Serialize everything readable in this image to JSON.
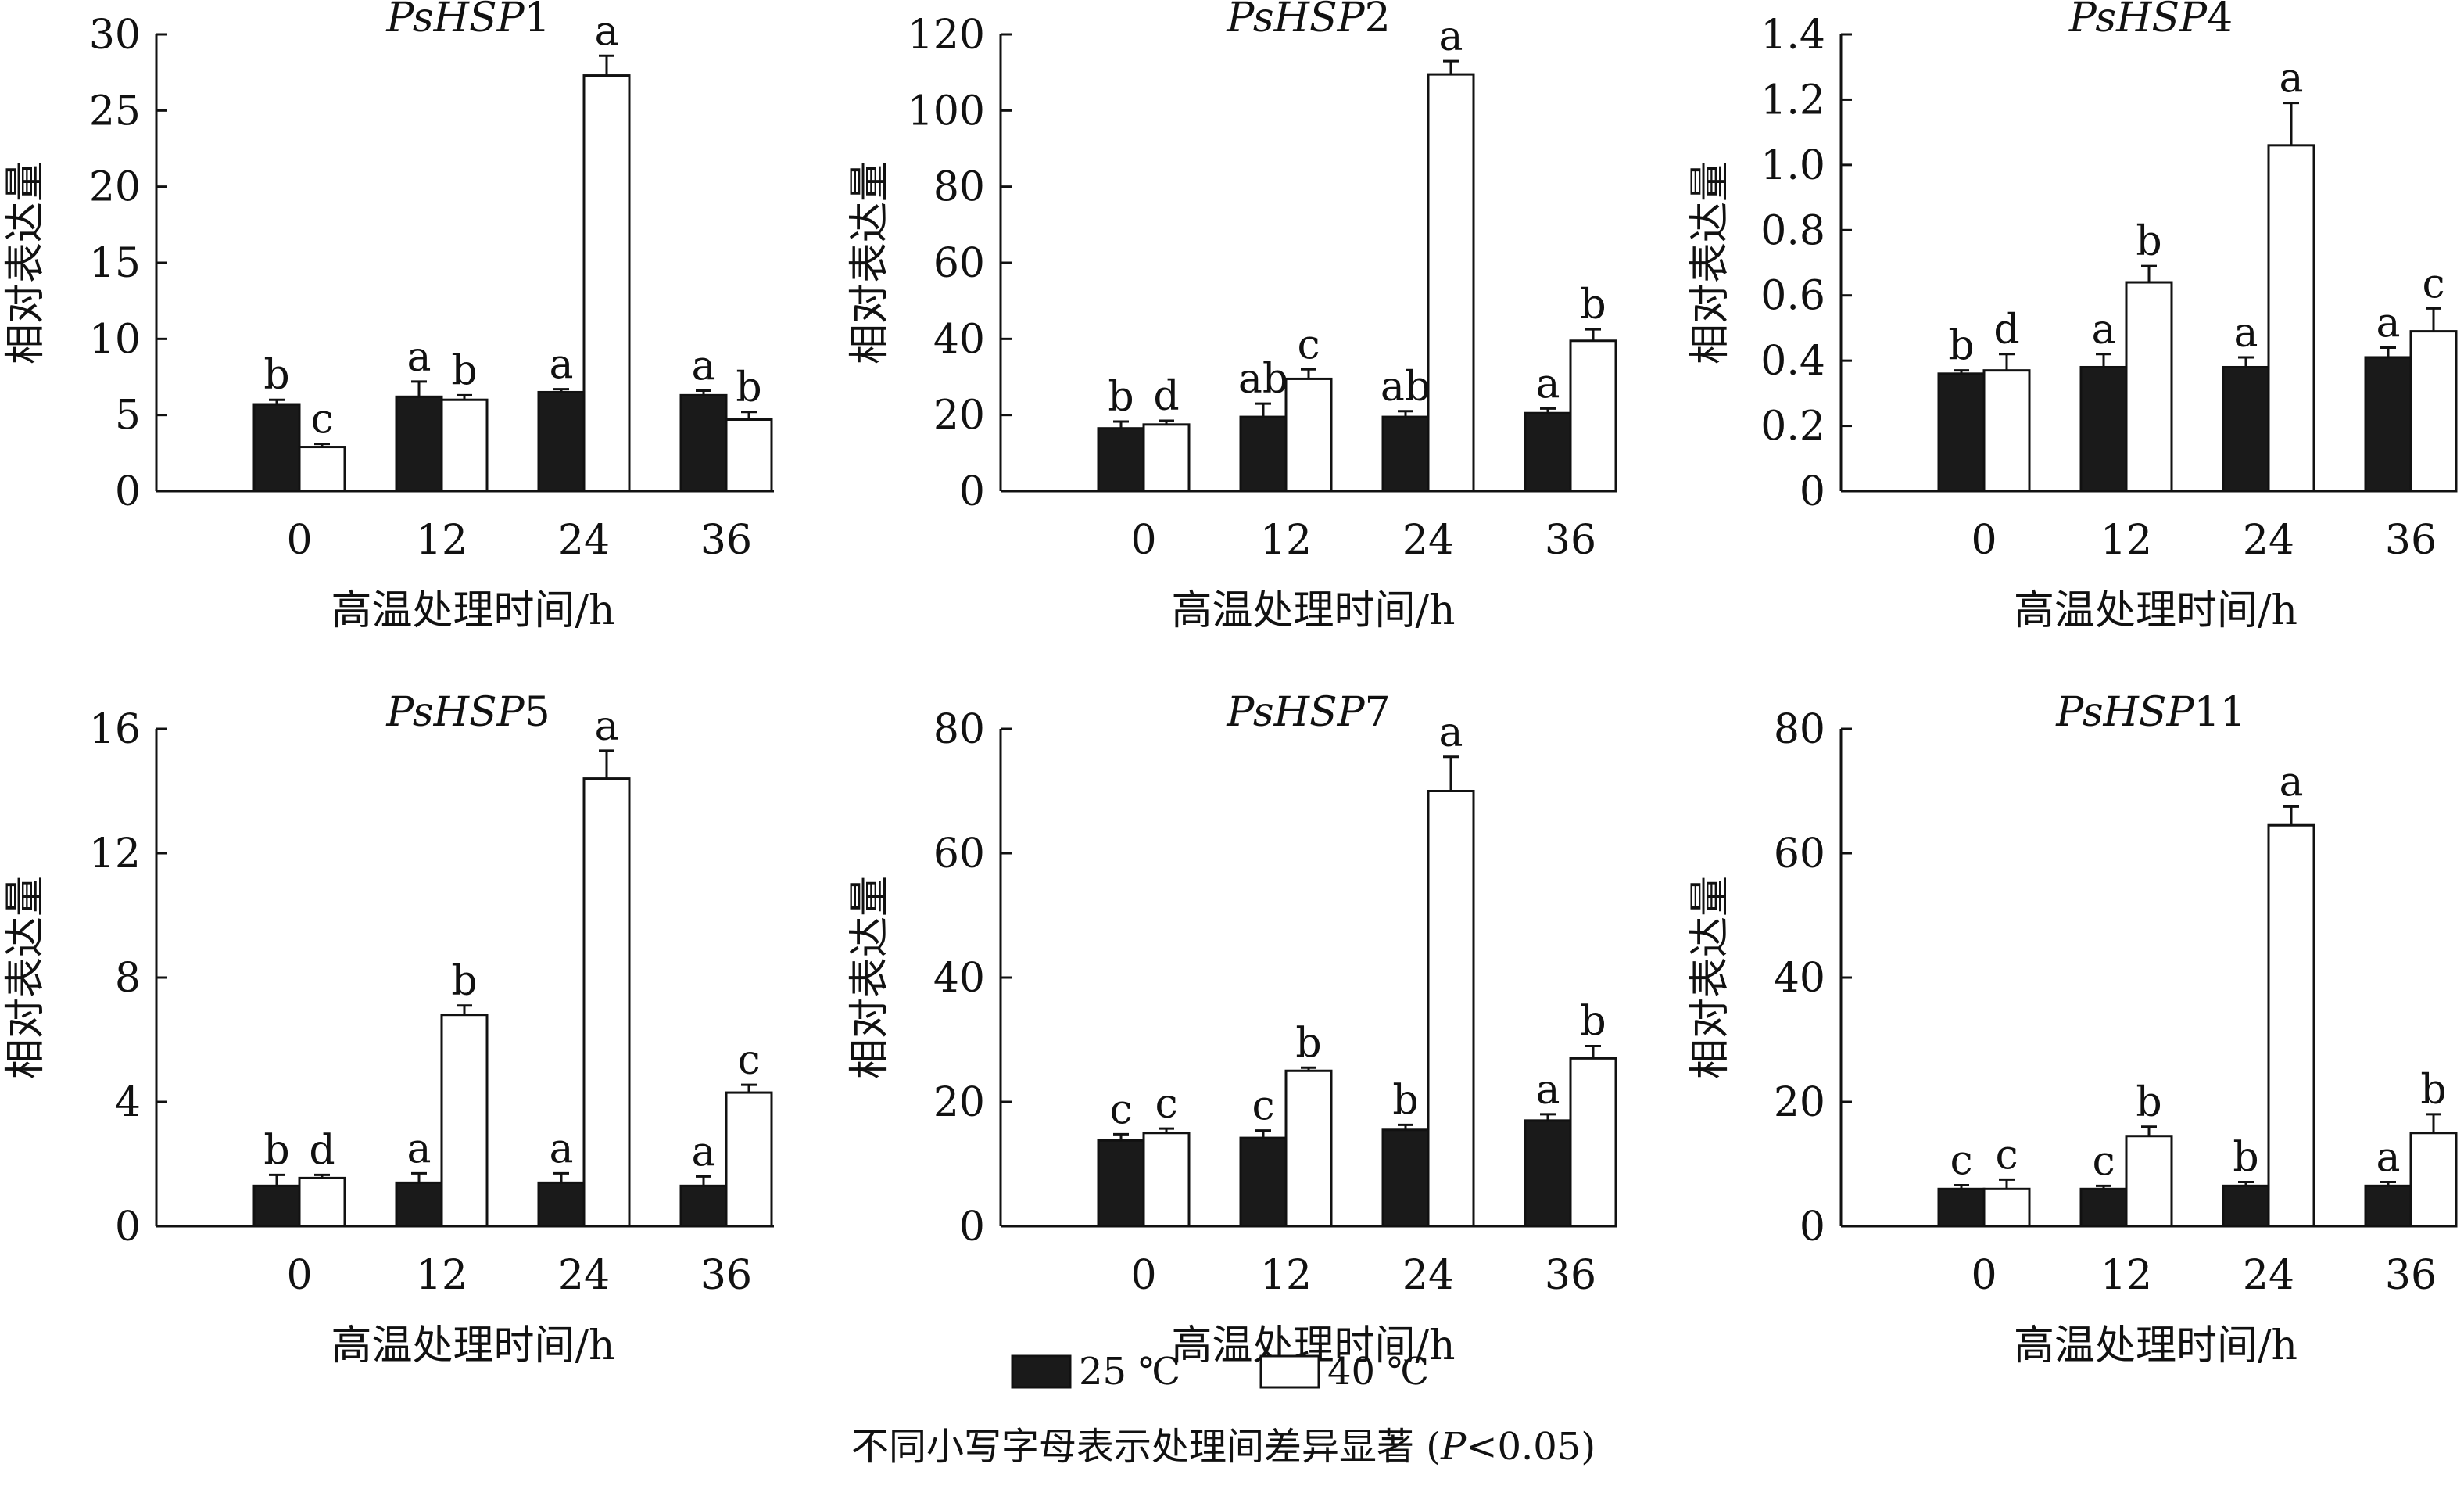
{
  "colors": {
    "series_25": "#1a1a1a",
    "series_40": "#ffffff",
    "stroke": "#111111"
  },
  "legend": {
    "items": [
      "25 ℃",
      "40 ℃"
    ]
  },
  "footnote": {
    "prefix": "不同小写字母表示处理间差异显著 (",
    "italic": "P",
    "suffix": "<0.05)"
  },
  "chart_data": [
    {
      "type": "bar",
      "title_italic": "PsHSP",
      "title_num": "1",
      "xlabel": "高温处理时间/h",
      "ylabel": "相对表达量",
      "categories": [
        "0",
        "12",
        "24",
        "36"
      ],
      "ylim": [
        0,
        30
      ],
      "yticks": [
        0,
        5,
        10,
        15,
        20,
        25,
        30
      ],
      "series": [
        {
          "name": "25 ℃",
          "values": [
            5.7,
            6.2,
            6.5,
            6.3
          ],
          "errors": [
            0.3,
            1.0,
            0.2,
            0.3
          ],
          "letters": [
            "b",
            "a",
            "a",
            "a"
          ]
        },
        {
          "name": "40 ℃",
          "values": [
            2.9,
            6.0,
            27.3,
            4.7
          ],
          "errors": [
            0.2,
            0.3,
            1.3,
            0.5
          ],
          "letters": [
            "c",
            "b",
            "a",
            "b"
          ]
        }
      ]
    },
    {
      "type": "bar",
      "title_italic": "PsHSP",
      "title_num": "2",
      "xlabel": "高温处理时间/h",
      "ylabel": "相对表达量",
      "categories": [
        "0",
        "12",
        "24",
        "36"
      ],
      "ylim": [
        0,
        120
      ],
      "yticks": [
        0,
        20,
        40,
        60,
        80,
        100,
        120
      ],
      "series": [
        {
          "name": "25 ℃",
          "values": [
            16.5,
            19.5,
            19.5,
            20.5
          ],
          "errors": [
            1.8,
            3.5,
            1.5,
            1.2
          ],
          "letters": [
            "b",
            "ab",
            "ab",
            "a"
          ]
        },
        {
          "name": "40 ℃",
          "values": [
            17.5,
            29.5,
            109.5,
            39.5
          ],
          "errors": [
            1.0,
            2.5,
            3.5,
            3.0
          ],
          "letters": [
            "d",
            "c",
            "a",
            "b"
          ]
        }
      ]
    },
    {
      "type": "bar",
      "title_italic": "PsHSP",
      "title_num": "4",
      "xlabel": "高温处理时间/h",
      "ylabel": "相对表达量",
      "categories": [
        "0",
        "12",
        "24",
        "36"
      ],
      "ylim": [
        0,
        1.4
      ],
      "yticks": [
        0,
        0.2,
        0.4,
        0.6,
        0.8,
        1.0,
        1.2,
        1.4
      ],
      "ytick_labels": [
        "0",
        "0.2",
        "0.4",
        "0.6",
        "0.8",
        "1.0",
        "1.2",
        "1.4"
      ],
      "series": [
        {
          "name": "25 ℃",
          "values": [
            0.36,
            0.38,
            0.38,
            0.41
          ],
          "errors": [
            0.01,
            0.04,
            0.03,
            0.03
          ],
          "letters": [
            "b",
            "a",
            "a",
            "a"
          ]
        },
        {
          "name": "40 ℃",
          "values": [
            0.37,
            0.64,
            1.06,
            0.49
          ],
          "errors": [
            0.05,
            0.05,
            0.13,
            0.07
          ],
          "letters": [
            "d",
            "b",
            "a",
            "c"
          ]
        }
      ]
    },
    {
      "type": "bar",
      "title_italic": "PsHSP",
      "title_num": "5",
      "xlabel": "高温处理时间/h",
      "ylabel": "相对表达量",
      "categories": [
        "0",
        "12",
        "24",
        "36"
      ],
      "ylim": [
        0,
        16
      ],
      "yticks": [
        0,
        4,
        8,
        12,
        16
      ],
      "series": [
        {
          "name": "25 ℃",
          "values": [
            1.3,
            1.4,
            1.4,
            1.3
          ],
          "errors": [
            0.35,
            0.3,
            0.3,
            0.3
          ],
          "letters": [
            "b",
            "a",
            "a",
            "a"
          ]
        },
        {
          "name": "40 ℃",
          "values": [
            1.55,
            6.8,
            14.4,
            4.3
          ],
          "errors": [
            0.1,
            0.3,
            0.9,
            0.25
          ],
          "letters": [
            "d",
            "b",
            "a",
            "c"
          ]
        }
      ]
    },
    {
      "type": "bar",
      "title_italic": "PsHSP",
      "title_num": "7",
      "xlabel": "高温处理时间/h",
      "ylabel": "相对表达量",
      "categories": [
        "0",
        "12",
        "24",
        "36"
      ],
      "ylim": [
        0,
        80
      ],
      "yticks": [
        0,
        20,
        40,
        60,
        80
      ],
      "series": [
        {
          "name": "25 ℃",
          "values": [
            13.8,
            14.2,
            15.5,
            17.0
          ],
          "errors": [
            1.0,
            1.2,
            0.8,
            1.0
          ],
          "letters": [
            "c",
            "c",
            "b",
            "a"
          ]
        },
        {
          "name": "40 ℃",
          "values": [
            15.0,
            25.0,
            70.0,
            27.0
          ],
          "errors": [
            0.7,
            0.5,
            5.5,
            2.0
          ],
          "letters": [
            "c",
            "b",
            "a",
            "b"
          ]
        }
      ]
    },
    {
      "type": "bar",
      "title_italic": "PsHSP",
      "title_num": "11",
      "xlabel": "高温处理时间/h",
      "ylabel": "相对表达量",
      "categories": [
        "0",
        "12",
        "24",
        "36"
      ],
      "ylim": [
        0,
        80
      ],
      "yticks": [
        0,
        20,
        40,
        60,
        80
      ],
      "series": [
        {
          "name": "25 ℃",
          "values": [
            6.0,
            6.0,
            6.5,
            6.5
          ],
          "errors": [
            0.6,
            0.5,
            0.6,
            0.6
          ],
          "letters": [
            "c",
            "c",
            "b",
            "a"
          ]
        },
        {
          "name": "40 ℃",
          "values": [
            6.0,
            14.5,
            64.5,
            15.0
          ],
          "errors": [
            1.5,
            1.5,
            3.0,
            3.0
          ],
          "letters": [
            "c",
            "b",
            "a",
            "b"
          ]
        }
      ]
    }
  ]
}
